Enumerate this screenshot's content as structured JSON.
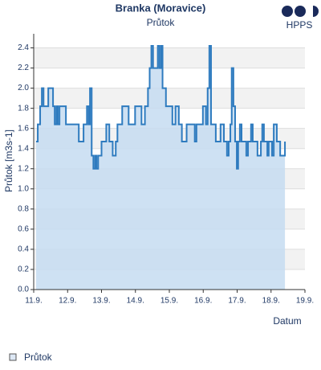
{
  "chart_data": {
    "type": "line",
    "title": "Branka (Moravice)",
    "subtitle": "Průtok",
    "logo": "HPPS",
    "x_label": "Datum",
    "y_label": "Průtok [m3s-1]",
    "x": [
      11.07,
      11.12,
      11.19,
      11.24,
      11.29,
      11.43,
      11.52,
      11.57,
      11.62,
      11.67,
      11.71,
      11.76,
      11.9,
      11.95,
      12.28,
      12.33,
      12.43,
      12.47,
      12.57,
      12.62,
      12.66,
      12.71,
      12.76,
      12.81,
      12.85,
      12.9,
      13.0,
      13.09,
      13.14,
      13.23,
      13.33,
      13.42,
      13.47,
      13.57,
      13.61,
      13.76,
      13.8,
      13.95,
      13.99,
      14.18,
      14.28,
      14.37,
      14.42,
      14.47,
      14.52,
      14.66,
      14.71,
      14.76,
      14.8,
      14.9,
      15.04,
      15.09,
      15.18,
      15.28,
      15.37,
      15.47,
      15.51,
      15.7,
      15.75,
      15.8,
      15.94,
      15.99,
      16.08,
      16.13,
      16.18,
      16.23,
      16.32,
      16.37,
      16.46,
      16.51,
      16.61,
      16.7,
      16.75,
      16.8,
      16.84,
      16.89,
      16.94,
      16.99,
      17.03,
      17.08,
      17.13,
      17.22,
      17.27,
      17.32,
      17.41,
      17.46,
      17.56,
      17.6,
      17.7,
      17.74,
      17.79,
      17.89,
      17.93,
      18.03,
      18.08,
      18.12,
      18.17,
      18.27,
      18.36,
      18.41
    ],
    "series": [
      {
        "name": "Průtok",
        "color": "#2e7bbf",
        "fill": "#c6dcf1",
        "values": [
          1.47,
          1.64,
          1.82,
          2.0,
          1.82,
          2.0,
          2.0,
          1.82,
          1.64,
          1.82,
          1.64,
          1.82,
          1.82,
          1.64,
          1.64,
          1.47,
          1.47,
          1.64,
          1.82,
          1.64,
          2.0,
          1.33,
          1.2,
          1.33,
          1.2,
          1.33,
          1.47,
          1.47,
          1.64,
          1.47,
          1.33,
          1.47,
          1.64,
          1.64,
          1.82,
          1.82,
          1.64,
          1.64,
          1.82,
          1.64,
          1.82,
          2.0,
          2.2,
          2.42,
          2.2,
          2.42,
          2.2,
          2.42,
          2.0,
          1.82,
          1.82,
          1.64,
          1.82,
          1.64,
          1.47,
          1.47,
          1.64,
          1.64,
          1.47,
          1.64,
          1.64,
          1.82,
          1.64,
          2.0,
          2.42,
          1.64,
          1.64,
          1.47,
          1.47,
          1.64,
          1.47,
          1.33,
          1.47,
          1.64,
          2.2,
          1.82,
          1.47,
          1.2,
          1.47,
          1.64,
          1.47,
          1.47,
          1.33,
          1.47,
          1.64,
          1.47,
          1.47,
          1.33,
          1.47,
          1.64,
          1.47,
          1.33,
          1.47,
          1.33,
          1.64,
          1.64,
          1.47,
          1.33,
          1.33,
          1.47
        ]
      }
    ],
    "xlim": [
      11,
      19
    ],
    "xticks": [
      {
        "value": 11,
        "label": "11.9."
      },
      {
        "value": 12,
        "label": "12.9."
      },
      {
        "value": 13,
        "label": "13.9."
      },
      {
        "value": 14,
        "label": "14.9."
      },
      {
        "value": 15,
        "label": "15.9."
      },
      {
        "value": 16,
        "label": "16.9."
      },
      {
        "value": 17,
        "label": "17.9."
      },
      {
        "value": 18,
        "label": "18.9."
      },
      {
        "value": 19,
        "label": "19.9."
      }
    ],
    "ylim": [
      0,
      2.54
    ],
    "yticks": [
      {
        "value": 0,
        "label": "0.0"
      },
      0.2,
      0.4,
      0.6,
      0.8,
      {
        "value": 1,
        "label": "1.0"
      },
      1.2,
      1.4,
      1.6,
      1.8,
      {
        "value": 2,
        "label": "2.0"
      },
      2.2,
      2.4
    ],
    "grid": true,
    "legend": "bottom-left"
  }
}
